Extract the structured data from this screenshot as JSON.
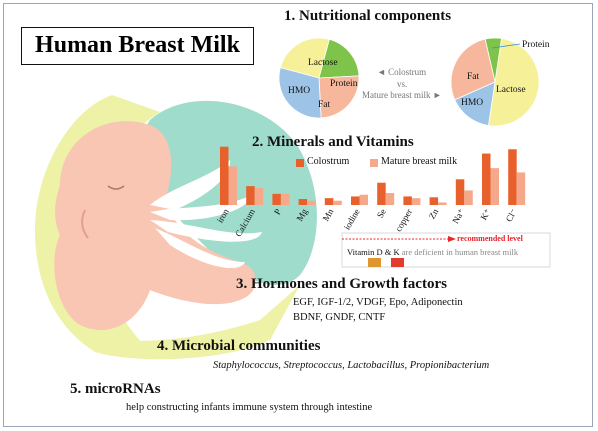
{
  "title": "Human Breast Milk",
  "sections": {
    "s1": "1. Nutritional components",
    "s2": "2. Minerals and Vitamins",
    "s3": "3. Hormones and Growth factors",
    "s4": "4. Microbial communities",
    "s5": "5. microRNAs"
  },
  "pies": {
    "colostrum_labels": {
      "lactose": "Lactose",
      "protein": "Protein",
      "fat": "Fat",
      "hmo": "HMO"
    },
    "mature_labels": {
      "protein": "Protein",
      "fat": "Fat",
      "lactose": "Lactose",
      "hmo": "HMO"
    },
    "compare_line1": "◄ Colostrum",
    "compare_line2": "vs.",
    "compare_line3": "Mature breast milk ►"
  },
  "legend": {
    "colostrum": "Colostrum",
    "mature": "Mature breast milk"
  },
  "reference": {
    "recommended": "recommended level",
    "vitamin_prefix": "Vitamin D & K",
    "vitamin_suffix": " are deficient in human breast milk"
  },
  "hormones": {
    "line1": "EGF, IGF-1/2, VDGF, Epo, Adiponectin",
    "line2": "BDNF, GNDF, CNTF"
  },
  "microbes": "Staphylococcus, Streptococcus, Lactobacillus, Propionibacterium",
  "micrornas": "help constructing infants immune system through intestine",
  "colors": {
    "colostrum": "#e8602c",
    "mature": "#f6a98a",
    "lactose": "#f6f199",
    "protein": "#7ec44a",
    "fat": "#f7b79d",
    "hmo": "#9dc3e6",
    "body_skin": "#f8c6b3",
    "breast_teal": "#9fdccb",
    "arm_yellow": "#eef2a6",
    "recommended": "#e8262a",
    "vit_d": "#e0962e",
    "vit_k": "#e23c2c"
  },
  "chart_data": [
    {
      "type": "pie",
      "name": "Colostrum",
      "slices": [
        {
          "label": "Lactose",
          "value": 25
        },
        {
          "label": "Protein",
          "value": 20
        },
        {
          "label": "Fat",
          "value": 25
        },
        {
          "label": "HMO",
          "value": 30
        }
      ]
    },
    {
      "type": "pie",
      "name": "Mature breast milk",
      "slices": [
        {
          "label": "Protein",
          "value": 6
        },
        {
          "label": "Lactose",
          "value": 50
        },
        {
          "label": "HMO",
          "value": 16
        },
        {
          "label": "Fat",
          "value": 28
        }
      ]
    },
    {
      "type": "bar",
      "categories": [
        "iron",
        "Calcium",
        "P",
        "Mg",
        "Mn",
        "iodine",
        "Se",
        "copper",
        "Zn",
        "Na⁺",
        "K⁺",
        "Cl⁻"
      ],
      "series": [
        {
          "name": "Colostrum",
          "values": [
            68,
            22,
            13,
            7,
            8,
            10,
            26,
            10,
            9,
            30,
            60,
            65
          ]
        },
        {
          "name": "Mature breast milk",
          "values": [
            45,
            20,
            13,
            5,
            5,
            12,
            14,
            8,
            3,
            17,
            43,
            38
          ]
        }
      ],
      "ylim": [
        0,
        70
      ]
    }
  ]
}
